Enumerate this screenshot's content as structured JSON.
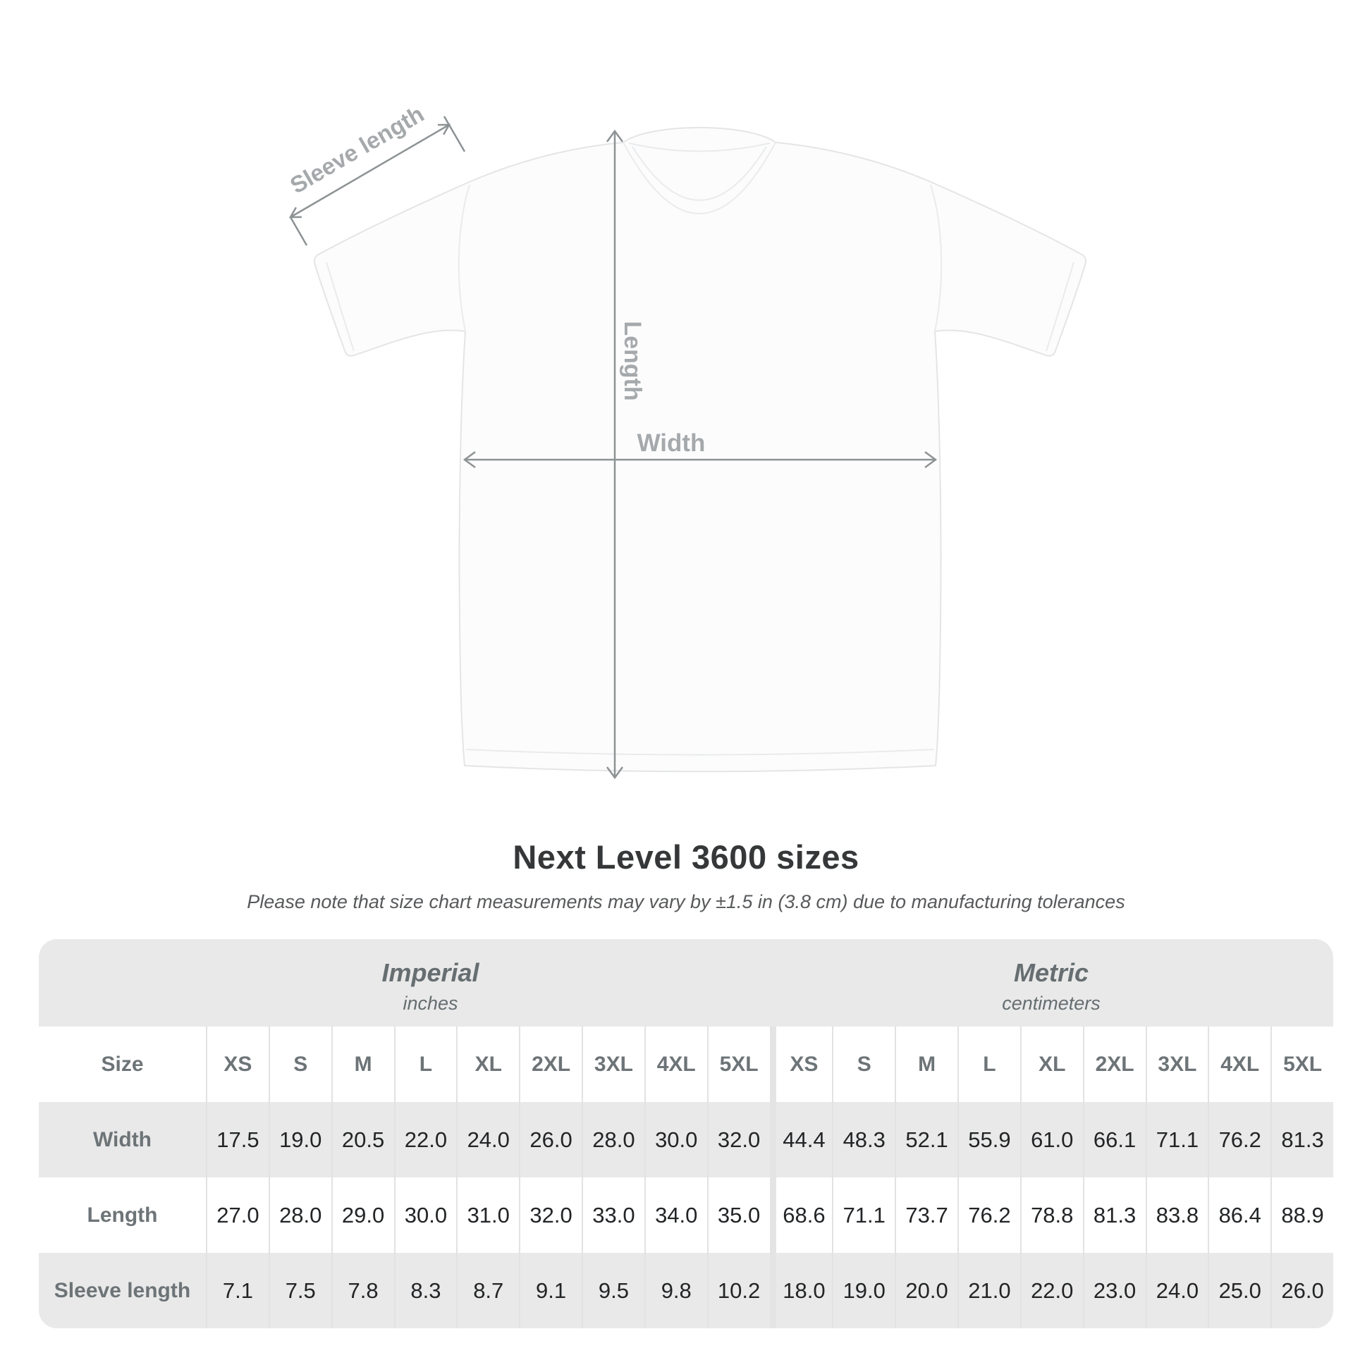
{
  "diagram": {
    "labels": {
      "sleeve_length": "Sleeve length",
      "length": "Length",
      "width": "Width"
    },
    "colors": {
      "dimension_line": "#8d9294",
      "dimension_text": "#a5a9ab",
      "shirt_fill": "#fcfcfd",
      "shirt_outline": "#e3e5e6"
    }
  },
  "title": "Next Level 3600 sizes",
  "subtitle": "Please note that size chart measurements may vary by ±1.5 in (3.8 cm) due to manufacturing tolerances",
  "table": {
    "panel_bg": "#e9e9e9",
    "sections": [
      {
        "label": "Imperial",
        "unit": "inches"
      },
      {
        "label": "Metric",
        "unit": "centimeters"
      }
    ],
    "size_header": "Size",
    "sizes": [
      "XS",
      "S",
      "M",
      "L",
      "XL",
      "2XL",
      "3XL",
      "4XL",
      "5XL"
    ],
    "rows": [
      {
        "label": "Width",
        "imperial": [
          "17.5",
          "19.0",
          "20.5",
          "22.0",
          "24.0",
          "26.0",
          "28.0",
          "30.0",
          "32.0"
        ],
        "metric": [
          "44.4",
          "48.3",
          "52.1",
          "55.9",
          "61.0",
          "66.1",
          "71.1",
          "76.2",
          "81.3"
        ]
      },
      {
        "label": "Length",
        "imperial": [
          "27.0",
          "28.0",
          "29.0",
          "30.0",
          "31.0",
          "32.0",
          "33.0",
          "34.0",
          "35.0"
        ],
        "metric": [
          "68.6",
          "71.1",
          "73.7",
          "76.2",
          "78.8",
          "81.3",
          "83.8",
          "86.4",
          "88.9"
        ]
      },
      {
        "label": "Sleeve length",
        "imperial": [
          "7.1",
          "7.5",
          "7.8",
          "8.3",
          "8.7",
          "9.1",
          "9.5",
          "9.8",
          "10.2"
        ],
        "metric": [
          "18.0",
          "19.0",
          "20.0",
          "21.0",
          "22.0",
          "23.0",
          "24.0",
          "25.0",
          "26.0"
        ]
      }
    ]
  }
}
